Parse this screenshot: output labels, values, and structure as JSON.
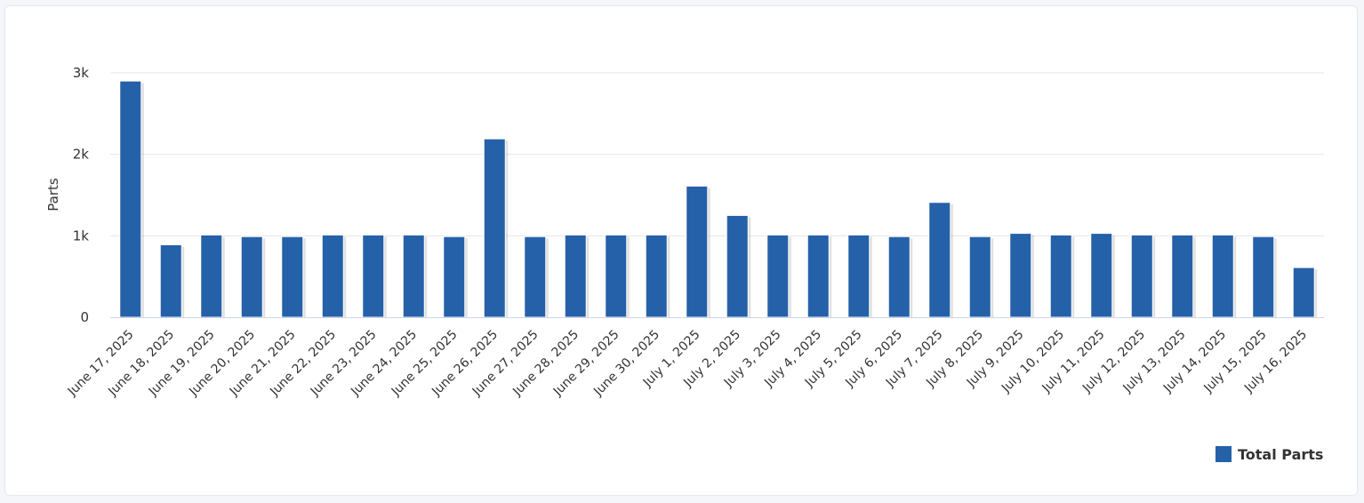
{
  "chart_data": {
    "type": "bar",
    "title": "",
    "xlabel": "",
    "ylabel": "Parts",
    "ylim": [
      0,
      3000
    ],
    "yticks": [
      {
        "value": 0,
        "label": "0"
      },
      {
        "value": 1000,
        "label": "1k"
      },
      {
        "value": 2000,
        "label": "2k"
      },
      {
        "value": 3000,
        "label": "3k"
      }
    ],
    "grid": true,
    "legend": "bottom-right",
    "colors": {
      "bar": "#2561a8",
      "grid": "#e6e6e6",
      "axis": "#ccd6eb"
    },
    "categories": [
      "June 17, 2025",
      "June 18, 2025",
      "June 19, 2025",
      "June 20, 2025",
      "June 21, 2025",
      "June 22, 2025",
      "June 23, 2025",
      "June 24, 2025",
      "June 25, 2025",
      "June 26, 2025",
      "June 27, 2025",
      "June 28, 2025",
      "June 29, 2025",
      "June 30, 2025",
      "July 1, 2025",
      "July 2, 2025",
      "July 3, 2025",
      "July 4, 2025",
      "July 5, 2025",
      "July 6, 2025",
      "July 7, 2025",
      "July 8, 2025",
      "July 9, 2025",
      "July 10, 2025",
      "July 11, 2025",
      "July 12, 2025",
      "July 13, 2025",
      "July 14, 2025",
      "July 15, 2025",
      "July 16, 2025"
    ],
    "series": [
      {
        "name": "Total Parts",
        "values": [
          2900,
          890,
          1010,
          990,
          990,
          1010,
          1010,
          1010,
          990,
          2190,
          990,
          1010,
          1010,
          1010,
          1610,
          1250,
          1010,
          1010,
          1010,
          990,
          1410,
          990,
          1030,
          1010,
          1030,
          1010,
          1010,
          1010,
          990,
          610
        ]
      }
    ]
  }
}
